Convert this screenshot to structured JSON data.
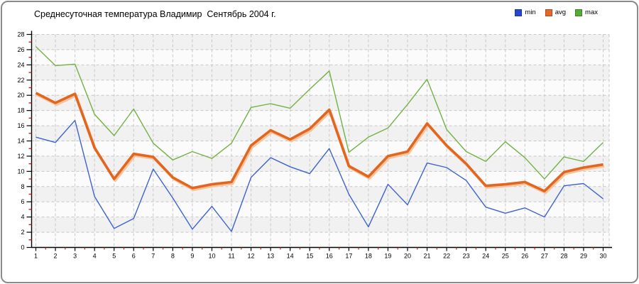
{
  "title": "Среднесуточная температура Владимир  Сентябрь 2004 г.",
  "legend": [
    {
      "label": "min",
      "color": "#2646d4"
    },
    {
      "label": "avg",
      "color": "#e7682a"
    },
    {
      "label": "max",
      "color": "#53ae30"
    }
  ],
  "chart_data": {
    "type": "line",
    "title": "Среднесуточная температура Владимир  Сентябрь 2004 г.",
    "xlabel": "",
    "ylabel": "",
    "x": [
      1,
      2,
      3,
      4,
      5,
      6,
      7,
      8,
      9,
      10,
      11,
      12,
      13,
      14,
      15,
      16,
      17,
      18,
      19,
      20,
      21,
      22,
      23,
      24,
      25,
      26,
      27,
      28,
      29,
      30
    ],
    "y_ticks": [
      0,
      2,
      4,
      6,
      8,
      10,
      12,
      14,
      16,
      18,
      20,
      22,
      24,
      26,
      28
    ],
    "ylim": [
      0,
      28
    ],
    "grid": true,
    "legend_position": "top-right",
    "band_color": "#f1f1f1",
    "band_alt_color": "#fbfbfb",
    "grid_color": "#c8c8c8",
    "axis_color": "#000000",
    "minor_tick_color": "#cc2020",
    "series": [
      {
        "name": "min",
        "color": "#3e63cf",
        "width": 1.4,
        "values": [
          14.5,
          13.8,
          16.7,
          6.7,
          2.5,
          3.8,
          10.3,
          6.5,
          2.4,
          5.4,
          2.1,
          9.2,
          11.8,
          10.6,
          9.7,
          13.0,
          7.0,
          2.7,
          8.3,
          5.6,
          11.1,
          10.5,
          8.8,
          5.3,
          4.5,
          5.2,
          4.0,
          8.1,
          8.4,
          6.4
        ]
      },
      {
        "name": "avg",
        "color": "#e2661f",
        "width": 3.6,
        "halo": "#f6c49b",
        "values": [
          20.3,
          19.0,
          20.2,
          13.1,
          9.0,
          12.3,
          11.9,
          9.2,
          7.8,
          8.3,
          8.6,
          13.4,
          15.4,
          14.2,
          15.6,
          18.1,
          10.7,
          9.3,
          12.0,
          12.6,
          16.3,
          13.4,
          11.0,
          8.1,
          8.3,
          8.6,
          7.4,
          9.9,
          10.5,
          10.9
        ]
      },
      {
        "name": "max",
        "color": "#72b244",
        "width": 1.4,
        "values": [
          26.4,
          23.9,
          24.1,
          17.5,
          14.7,
          18.2,
          13.7,
          11.5,
          12.6,
          11.7,
          13.7,
          18.4,
          18.9,
          18.3,
          20.8,
          23.2,
          12.5,
          14.5,
          15.7,
          18.8,
          22.1,
          15.5,
          12.6,
          11.3,
          13.9,
          11.8,
          9.0,
          11.9,
          11.3,
          13.8
        ]
      }
    ]
  }
}
